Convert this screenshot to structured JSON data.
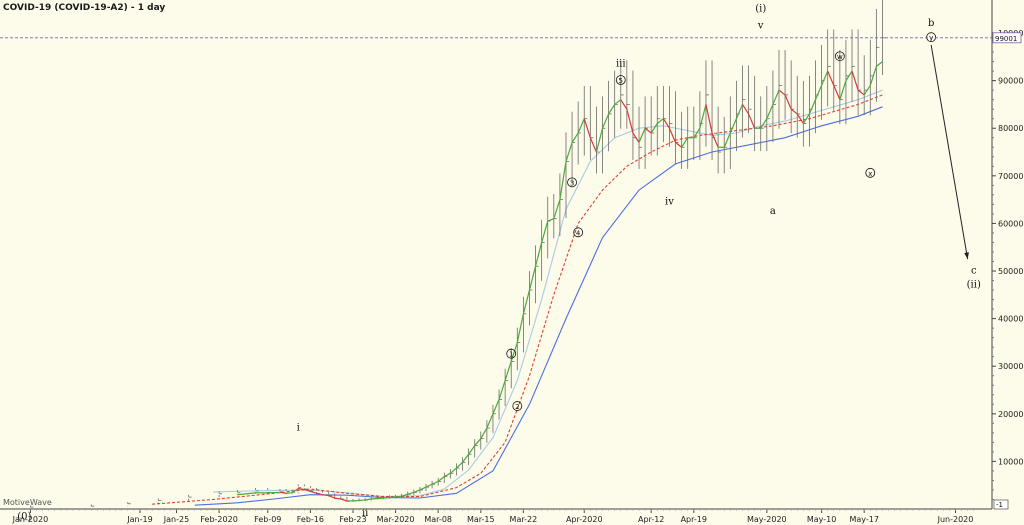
{
  "chart_data": {
    "type": "line",
    "title": "COVID-19 (COVID-19-A2) - 1 day",
    "watermark": "MotiveWave",
    "x_tick_labels": [
      "Jan-2020",
      "Jan-19",
      "Jan-25",
      "Feb-2020",
      "Feb-09",
      "Feb-16",
      "Feb-23",
      "Mar-2020",
      "Mar-08",
      "Mar-15",
      "Mar-22",
      "Apr-2020",
      "Apr-12",
      "Apr-19",
      "May-2020",
      "May-10",
      "May-17",
      "Jun-2020"
    ],
    "x_tick_days": [
      0,
      18,
      24,
      31,
      39,
      46,
      53,
      60,
      67,
      74,
      81,
      91,
      102,
      109,
      121,
      130,
      137,
      152
    ],
    "y_ticks": [
      10000,
      20000,
      30000,
      40000,
      50000,
      60000,
      70000,
      80000,
      90000,
      100000
    ],
    "y_tick_labels": [
      "10000",
      "20000",
      "30000",
      "40000",
      "50000",
      "60000",
      "70000",
      "80000",
      "90000",
      "100000"
    ],
    "ylim": [
      -1,
      104000
    ],
    "xlim_days": [
      -5,
      158
    ],
    "current_price_label": "99001",
    "current_price": 99001,
    "axis_min_label": "-1",
    "series": [
      {
        "role": "price",
        "color": "#6a6a6a",
        "x": [
          0,
          10,
          16,
          21,
          26,
          31,
          34,
          37,
          39,
          41,
          42,
          43,
          44,
          45,
          46,
          47,
          48,
          49,
          50,
          51,
          52,
          53,
          54,
          55,
          56,
          57,
          58,
          59,
          60,
          61,
          62,
          63,
          64,
          65,
          66,
          67,
          68,
          69,
          70,
          71,
          72,
          73,
          74,
          75,
          76,
          77,
          78,
          79,
          80,
          81,
          82,
          83,
          84,
          85,
          86,
          87,
          88,
          89,
          90,
          91,
          92,
          93,
          94,
          95,
          96,
          97,
          98,
          99,
          100,
          101,
          102,
          103,
          104,
          105,
          106,
          107,
          108,
          109,
          110,
          111,
          112,
          113,
          114,
          115,
          116,
          117,
          118,
          119,
          120,
          121,
          122,
          123,
          124,
          125,
          126,
          127,
          128,
          129,
          130,
          131,
          132,
          133,
          134,
          135,
          136,
          137,
          138,
          139,
          140
        ],
        "values": [
          400,
          600,
          1100,
          1800,
          2500,
          3200,
          3400,
          3800,
          3500,
          3600,
          3300,
          3500,
          4500,
          4200,
          3800,
          3300,
          3000,
          2800,
          2200,
          2100,
          1600,
          1700,
          1800,
          1900,
          2100,
          2200,
          2300,
          2400,
          2500,
          2700,
          3100,
          3500,
          4000,
          4600,
          5200,
          5800,
          6800,
          7500,
          8600,
          9800,
          11500,
          13300,
          14800,
          17000,
          20000,
          23000,
          27000,
          31000,
          35000,
          41000,
          46000,
          51000,
          56000,
          60500,
          61000,
          65000,
          73000,
          77000,
          79000,
          82000,
          78000,
          75000,
          80000,
          83000,
          85000,
          87000,
          85000,
          78000,
          76000,
          80000,
          79000,
          82000,
          82000,
          81000,
          77000,
          76000,
          78000,
          78000,
          81000,
          87000,
          78000,
          75000,
          76000,
          80000,
          83000,
          86000,
          84000,
          80000,
          80000,
          82000,
          85000,
          89000,
          87000,
          84000,
          83000,
          81000,
          84000,
          87000,
          90000,
          93000,
          89000,
          86000,
          91000,
          93000,
          88000,
          88000,
          91000,
          97000,
          99001
        ]
      },
      {
        "role": "fast-ma",
        "color": "#4aaa3a",
        "color_down": "#d83a3a",
        "x": [
          34,
          37,
          39,
          41,
          42,
          43,
          44,
          45,
          46,
          47,
          48,
          49,
          50,
          51,
          52,
          53,
          54,
          55,
          56,
          57,
          58,
          59,
          60,
          61,
          62,
          63,
          64,
          65,
          66,
          67,
          68,
          69,
          70,
          71,
          72,
          73,
          74,
          75,
          76,
          77,
          78,
          79,
          80,
          81,
          82,
          83,
          84,
          85,
          86,
          87,
          88,
          89,
          90,
          91,
          92,
          93,
          94,
          95,
          96,
          97,
          98,
          99,
          100,
          101,
          102,
          103,
          104,
          105,
          106,
          107,
          108,
          109,
          110,
          111,
          112,
          113,
          114,
          115,
          116,
          117,
          118,
          119,
          120,
          121,
          122,
          123,
          124,
          125,
          126,
          127,
          128,
          129,
          130,
          131,
          132,
          133,
          134,
          135,
          136,
          137,
          138,
          139,
          140
        ],
        "values": [
          3000,
          3400,
          3400,
          3500,
          3300,
          3400,
          4300,
          4100,
          3700,
          3300,
          3000,
          2800,
          2300,
          2100,
          1700,
          1700,
          1800,
          1900,
          2100,
          2200,
          2300,
          2400,
          2500,
          2700,
          3100,
          3500,
          4000,
          4600,
          5200,
          5800,
          6800,
          7500,
          8600,
          9800,
          11500,
          13300,
          14800,
          17000,
          20000,
          23000,
          27000,
          31000,
          35000,
          41000,
          46000,
          51000,
          56000,
          60500,
          61000,
          65000,
          73000,
          77000,
          79000,
          82000,
          78000,
          75000,
          80000,
          83000,
          85000,
          86000,
          84000,
          79000,
          77000,
          80000,
          79000,
          81000,
          82000,
          80000,
          77000,
          76000,
          78000,
          78000,
          80000,
          85000,
          79000,
          76000,
          76000,
          79000,
          82000,
          85000,
          83000,
          80000,
          80000,
          82000,
          85000,
          88000,
          87000,
          84000,
          83000,
          81000,
          83000,
          86000,
          89000,
          92000,
          89000,
          86000,
          90000,
          92000,
          88000,
          87000,
          89000,
          93000,
          94000
        ]
      },
      {
        "role": "ma-lightblue",
        "color": "#a9cbe6",
        "x": [
          30,
          40,
          46,
          52,
          58,
          64,
          68,
          72,
          76,
          80,
          84,
          88,
          92,
          96,
          100,
          104,
          108,
          112,
          116,
          120,
          124,
          128,
          132,
          136,
          140
        ],
        "values": [
          3600,
          3900,
          4000,
          3400,
          2600,
          2800,
          4200,
          8200,
          15000,
          27000,
          44000,
          63000,
          73000,
          78000,
          80000,
          80500,
          79500,
          78500,
          79000,
          80500,
          81500,
          83000,
          84500,
          86000,
          88000
        ]
      },
      {
        "role": "ma-red-dotted",
        "color": "#e04030",
        "x": [
          20,
          30,
          40,
          46,
          52,
          58,
          64,
          70,
          74,
          78,
          82,
          86,
          90,
          94,
          98,
          102,
          106,
          110,
          116,
          122,
          128,
          132,
          136,
          140
        ],
        "values": [
          1000,
          2000,
          3300,
          4200,
          3300,
          2600,
          2600,
          4500,
          7500,
          14000,
          28000,
          45000,
          60000,
          67000,
          72000,
          75000,
          77500,
          78500,
          79500,
          80500,
          82000,
          83500,
          85000,
          87000
        ]
      },
      {
        "role": "slow-ma-blue",
        "color": "#4f6fe0",
        "x": [
          27,
          34,
          40,
          46,
          52,
          58,
          64,
          70,
          76,
          82,
          88,
          94,
          100,
          106,
          112,
          118,
          124,
          130,
          136,
          140
        ],
        "values": [
          800,
          1300,
          2100,
          3000,
          2900,
          2400,
          2300,
          3300,
          8000,
          22000,
          40000,
          57000,
          67000,
          72500,
          75000,
          76500,
          78000,
          80500,
          82500,
          84500
        ]
      }
    ],
    "wave_labels": [
      {
        "text": "(0)",
        "x": -1,
        "y": -2200,
        "style": "serif"
      },
      {
        "text": "i",
        "x": 44,
        "y": 16500,
        "style": "serif"
      },
      {
        "text": "ii",
        "x": 55,
        "y": -1500,
        "style": "serif"
      },
      {
        "text": "1",
        "x": 79,
        "y": 32000,
        "style": "circle"
      },
      {
        "text": "2",
        "x": 80,
        "y": 21000,
        "style": "circle"
      },
      {
        "text": "3",
        "x": 89,
        "y": 68000,
        "style": "circle"
      },
      {
        "text": "4",
        "x": 90,
        "y": 57500,
        "style": "circle"
      },
      {
        "text": "iii",
        "x": 97,
        "y": 93000,
        "style": "serif"
      },
      {
        "text": "5",
        "x": 97,
        "y": 89500,
        "style": "circle"
      },
      {
        "text": "iv",
        "x": 105,
        "y": 64000,
        "style": "serif"
      },
      {
        "text": "(i)",
        "x": 120,
        "y": 104500,
        "style": "serif"
      },
      {
        "text": "v",
        "x": 120,
        "y": 101000,
        "style": "serif"
      },
      {
        "text": "a",
        "x": 122,
        "y": 62000,
        "style": "serif"
      },
      {
        "text": "w",
        "x": 133,
        "y": 94500,
        "style": "circle"
      },
      {
        "text": "x",
        "x": 138,
        "y": 70000,
        "style": "circle"
      },
      {
        "text": "b",
        "x": 148,
        "y": 101500,
        "style": "serif"
      },
      {
        "text": "y",
        "x": 148,
        "y": 98500,
        "style": "circle"
      },
      {
        "text": "c",
        "x": 155,
        "y": 49500,
        "style": "serif"
      },
      {
        "text": "(ii)",
        "x": 155,
        "y": 46500,
        "style": "serif"
      }
    ],
    "projection_arrow": {
      "x1": 148,
      "y1": 97500,
      "x2": 154,
      "y2": 52500
    },
    "legend": "none",
    "grid": false
  }
}
